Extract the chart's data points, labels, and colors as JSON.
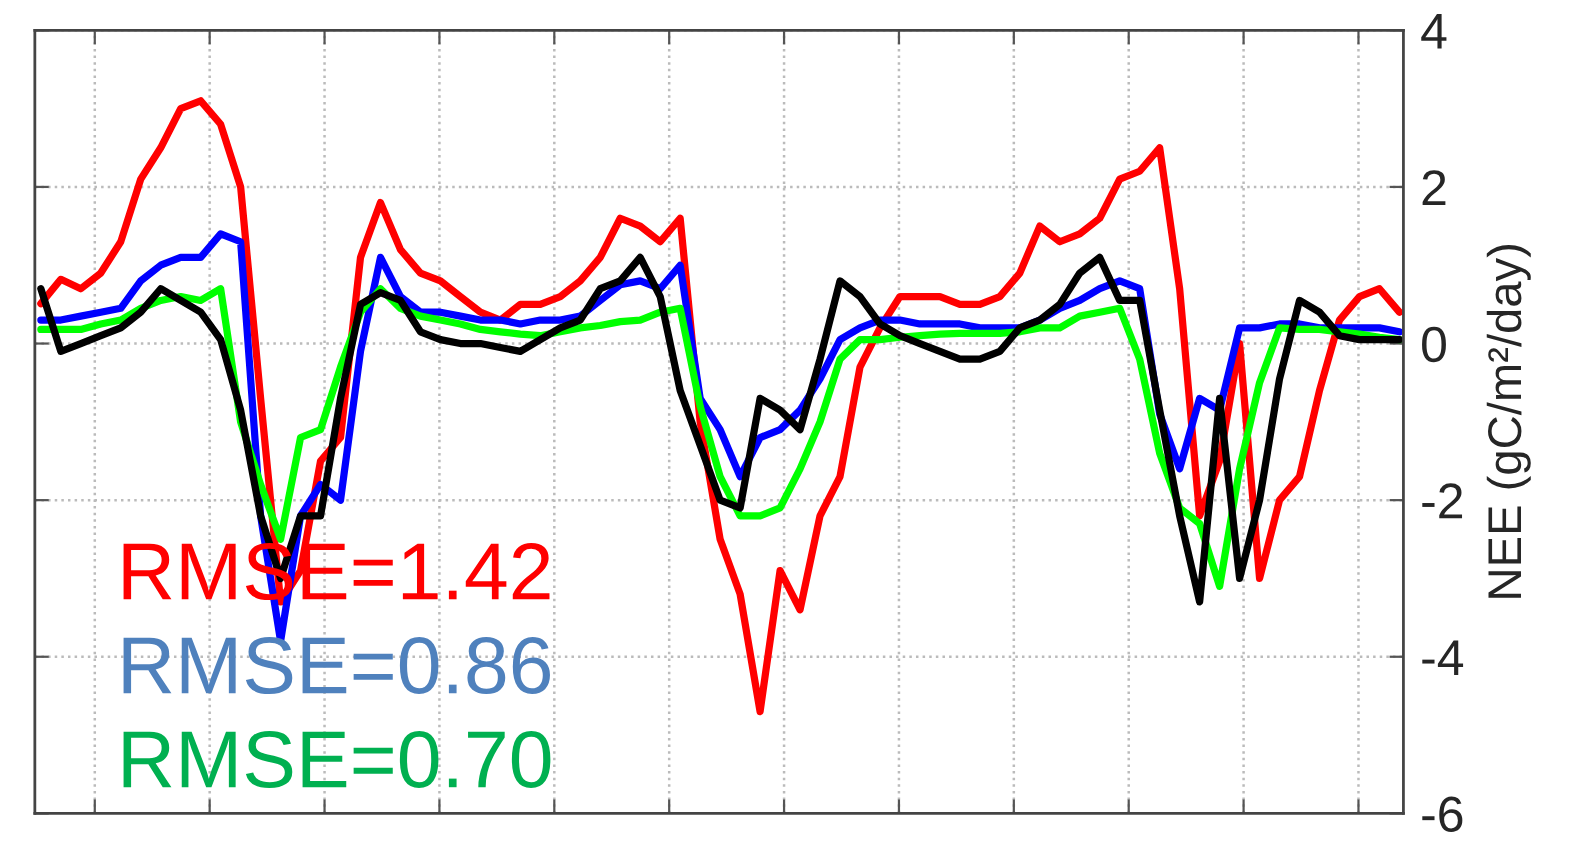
{
  "chart_data": {
    "type": "line",
    "ylabel": "NEE (gC/m²/day)",
    "categories": [
      null,
      null,
      null,
      null,
      null,
      null,
      null,
      null,
      null,
      null,
      null,
      null,
      null,
      null,
      null,
      null,
      null,
      null,
      null,
      null,
      null,
      null,
      null,
      null,
      null,
      null,
      null,
      null,
      null,
      null,
      null,
      null,
      null,
      null,
      null,
      null,
      null,
      null,
      null,
      null,
      null,
      null,
      null,
      null,
      null,
      null,
      null,
      null,
      null,
      null,
      null,
      null,
      null,
      null,
      null,
      null,
      null,
      null,
      null,
      null,
      null,
      null,
      null,
      null,
      null,
      null,
      null,
      null,
      null
    ],
    "ylim": [
      -6,
      4
    ],
    "yticks": [
      -6,
      -4,
      -2,
      0,
      2,
      4
    ],
    "tick_labels": "y",
    "grid": true,
    "annotations": [
      "RMSE=1.42",
      "RMSE=0.86",
      "RMSE=0.70"
    ],
    "series": [
      {
        "color": "#ff0000",
        "values": [
          0.51,
          0.82,
          0.7,
          0.9,
          1.3,
          2.1,
          2.5,
          3.0,
          3.1,
          2.8,
          2.0,
          -0.7,
          -3.3,
          -2.9,
          -1.5,
          -1.2,
          1.1,
          1.8,
          1.2,
          0.9,
          0.8,
          0.6,
          0.4,
          0.3,
          0.5,
          0.5,
          0.6,
          0.8,
          1.1,
          1.6,
          1.5,
          1.3,
          1.6,
          -1.0,
          -2.5,
          -3.2,
          -4.7,
          -2.9,
          -3.4,
          -2.2,
          -1.7,
          -0.3,
          0.2,
          0.6,
          0.6,
          0.6,
          0.5,
          0.5,
          0.6,
          0.9,
          1.5,
          1.3,
          1.4,
          1.6,
          2.1,
          2.2,
          2.5,
          0.7,
          -2.2,
          -1.5,
          0,
          -3.0,
          -2.0,
          -1.7,
          -0.6,
          0.3,
          0.6,
          0.7,
          0.4
        ]
      },
      {
        "color": "#0000ff",
        "values": [
          0.3,
          0.3,
          0.35,
          0.4,
          0.45,
          0.8,
          1.0,
          1.1,
          1.1,
          1.4,
          1.3,
          -2.2,
          -3.8,
          -2.2,
          -1.8,
          -2.0,
          -0.1,
          1.1,
          0.6,
          0.4,
          0.4,
          0.35,
          0.3,
          0.3,
          0.25,
          0.3,
          0.3,
          0.35,
          0.55,
          0.75,
          0.8,
          0.7,
          1.0,
          -0.7,
          -1.1,
          -1.7,
          -1.2,
          -1.1,
          -0.85,
          -0.45,
          0.05,
          0.2,
          0.3,
          0.3,
          0.25,
          0.25,
          0.25,
          0.2,
          0.2,
          0.2,
          0.3,
          0.45,
          0.55,
          0.7,
          0.8,
          0.7,
          -0.9,
          -1.6,
          -0.7,
          -0.85,
          0.2,
          0.2,
          0.25,
          0.25,
          0.2,
          0.2,
          0.2,
          0.2,
          0.15
        ]
      },
      {
        "color": "#00ff00",
        "values": [
          0.18,
          0.18,
          0.18,
          0.25,
          0.3,
          0.45,
          0.55,
          0.6,
          0.55,
          0.7,
          -1.0,
          -1.8,
          -2.5,
          -1.2,
          -1.1,
          -0.3,
          0.4,
          0.7,
          0.45,
          0.35,
          0.3,
          0.25,
          0.18,
          0.15,
          0.12,
          0.1,
          0.15,
          0.2,
          0.23,
          0.28,
          0.3,
          0.4,
          0.45,
          -0.8,
          -1.7,
          -2.2,
          -2.2,
          -2.1,
          -1.6,
          -1.0,
          -0.2,
          0.05,
          0.05,
          0.08,
          0.1,
          0.12,
          0.13,
          0.13,
          0.13,
          0.15,
          0.2,
          0.2,
          0.35,
          0.4,
          0.45,
          -0.2,
          -1.4,
          -2.1,
          -2.3,
          -3.1,
          -1.6,
          -0.5,
          0.2,
          0.18,
          0.18,
          0.15,
          0.12,
          0.08,
          0.05
        ]
      },
      {
        "color": "#000000",
        "values": [
          0.7,
          -0.1,
          0,
          0.1,
          0.2,
          0.4,
          0.7,
          0.55,
          0.4,
          0.05,
          -0.85,
          -2.2,
          -3.0,
          -2.2,
          -2.2,
          -0.7,
          0.5,
          0.65,
          0.55,
          0.15,
          0.05,
          0,
          0,
          -0.05,
          -0.1,
          0.05,
          0.2,
          0.3,
          0.7,
          0.8,
          1.1,
          0.6,
          -0.6,
          -1.3,
          -2.0,
          -2.1,
          -0.7,
          -0.85,
          -1.1,
          -0.2,
          0.8,
          0.6,
          0.25,
          0.1,
          0,
          -0.1,
          -0.2,
          -0.2,
          -0.1,
          0.2,
          0.3,
          0.5,
          0.9,
          1.1,
          0.55,
          0.55,
          -0.85,
          -2.2,
          -3.3,
          -0.7,
          -3.0,
          -2.0,
          -0.45,
          0.55,
          0.4,
          0.1,
          0.05,
          0.05,
          0.05
        ]
      }
    ]
  }
}
